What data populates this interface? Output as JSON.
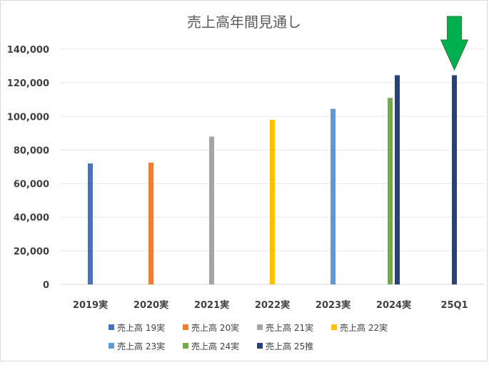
{
  "chart_data": {
    "type": "bar",
    "title": "売上高年間見通し",
    "categories": [
      "2019実",
      "2020実",
      "2021実",
      "2022実",
      "2023実",
      "2024実",
      "25Q1"
    ],
    "ylim": [
      0,
      140000
    ],
    "yticks": [
      0,
      20000,
      40000,
      60000,
      80000,
      100000,
      120000,
      140000
    ],
    "ytick_labels": [
      "0",
      "20,000",
      "40,000",
      "60,000",
      "80,000",
      "100,000",
      "120,000",
      "140,000"
    ],
    "grid": true,
    "legend_position": "bottom",
    "series": [
      {
        "name": "売上高 19実",
        "color": "#4472C4",
        "values": [
          72000,
          null,
          null,
          null,
          null,
          null,
          null
        ]
      },
      {
        "name": "売上高 20実",
        "color": "#ED7D31",
        "values": [
          null,
          72500,
          null,
          null,
          null,
          null,
          null
        ]
      },
      {
        "name": "売上高 21実",
        "color": "#A5A5A5",
        "values": [
          null,
          null,
          88000,
          null,
          null,
          null,
          null
        ]
      },
      {
        "name": "売上高 22実",
        "color": "#FFC000",
        "values": [
          null,
          null,
          null,
          98000,
          null,
          null,
          null
        ]
      },
      {
        "name": "売上高 23実",
        "color": "#5B9BD5",
        "values": [
          null,
          null,
          null,
          null,
          104500,
          null,
          null
        ]
      },
      {
        "name": "売上高 24実",
        "color": "#70AD47",
        "values": [
          null,
          null,
          null,
          null,
          null,
          111000,
          null
        ]
      },
      {
        "name": "売上高 25推",
        "color": "#264478",
        "values": [
          null,
          null,
          null,
          null,
          null,
          124500,
          124500
        ]
      }
    ],
    "annotation": {
      "type": "arrow",
      "direction": "down",
      "target_category": "25Q1",
      "color": "#00B050",
      "icon": "down-arrow-icon"
    }
  }
}
